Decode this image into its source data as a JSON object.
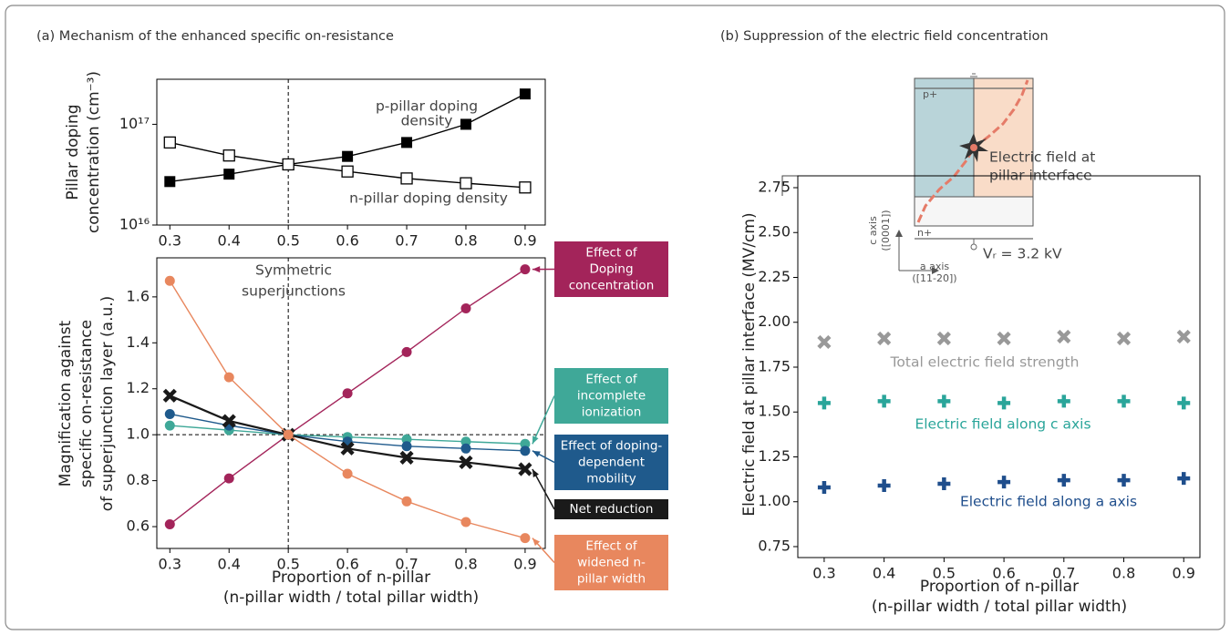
{
  "panels": [
    "(a) Mechanism of the enhanced specific on-resistance",
    "(b) Suppression of the electric field concentration"
  ],
  "chart_data": [
    {
      "type": "line",
      "yscale": "log",
      "x": [
        0.3,
        0.4,
        0.5,
        0.6,
        0.7,
        0.8,
        0.9
      ],
      "xlim": [
        0.278,
        0.934
      ],
      "xticks": [
        0.3,
        0.4,
        0.5,
        0.6,
        0.7,
        0.8,
        0.9
      ],
      "ylim": [
        1e+16,
        2.8e+17
      ],
      "yticks": [
        {
          "value": 1e+16,
          "label": "10¹⁶"
        },
        {
          "value": 1e+17,
          "label": "10¹⁷"
        }
      ],
      "ylabel": [
        "Pillar doping",
        "concentration (cm⁻³)"
      ],
      "vline": 0.5,
      "series": [
        {
          "name": [
            "p-pillar doping",
            "density"
          ],
          "color": "#000000",
          "marker": "square",
          "values": [
            2.7e+16,
            3.2e+16,
            4e+16,
            4.8e+16,
            6.6e+16,
            1e+17,
            2e+17
          ]
        },
        {
          "name": [
            "n-pillar doping density"
          ],
          "color": "#000000",
          "marker": "open-square",
          "values": [
            6.6e+16,
            4.9e+16,
            4e+16,
            3.4e+16,
            2.9e+16,
            2.6e+16,
            2.36e+16
          ]
        }
      ]
    },
    {
      "type": "line",
      "x": [
        0.3,
        0.4,
        0.5,
        0.6,
        0.7,
        0.8,
        0.9
      ],
      "xlim": [
        0.278,
        0.934
      ],
      "xticks": [
        0.3,
        0.4,
        0.5,
        0.6,
        0.7,
        0.8,
        0.9
      ],
      "ylim": [
        0.505,
        1.77
      ],
      "yticks": [
        0.6,
        0.8,
        {
          "value": 1,
          "label": "1.0"
        },
        1.2,
        1.4,
        1.6
      ],
      "xlabel": [
        "Proportion of n-pillar",
        "(n-pillar width / total pillar width)"
      ],
      "ylabel": [
        "Magnification against",
        "specific on-resistance",
        "of superjunction layer (a.u.)"
      ],
      "annotation": [
        "Symmetric",
        "superjunctions"
      ],
      "vline": 0.5,
      "hline": 1,
      "series": [
        {
          "name": [
            "Effect of",
            "Doping",
            "concentration"
          ],
          "color": "#a3245a",
          "marker": "circle",
          "values": [
            0.61,
            0.81,
            1.0,
            1.18,
            1.36,
            1.55,
            1.72
          ]
        },
        {
          "name": [
            "Effect of",
            "incomplete",
            "ionization"
          ],
          "color": "#3fa898",
          "marker": "circle",
          "values": [
            1.04,
            1.02,
            1.0,
            0.99,
            0.98,
            0.97,
            0.96
          ]
        },
        {
          "name": [
            "Effect of doping-",
            "dependent",
            "mobility"
          ],
          "color": "#1f5a8c",
          "marker": "circle",
          "values": [
            1.09,
            1.04,
            1.0,
            0.97,
            0.95,
            0.94,
            0.93
          ]
        },
        {
          "name": [
            "Net reduction"
          ],
          "color": "#1a1a1a",
          "marker": "x",
          "values": [
            1.17,
            1.06,
            1.0,
            0.94,
            0.9,
            0.88,
            0.85
          ]
        },
        {
          "name": [
            "Effect of",
            "widened n-",
            "pillar width"
          ],
          "color": "#e8875e",
          "marker": "circle",
          "values": [
            1.67,
            1.25,
            1.0,
            0.83,
            0.71,
            0.62,
            0.55
          ]
        }
      ]
    },
    {
      "type": "scatter",
      "x": [
        0.3,
        0.4,
        0.5,
        0.6,
        0.7,
        0.8,
        0.9
      ],
      "xlim": [
        0.256,
        0.927
      ],
      "xticks": [
        0.3,
        0.4,
        0.5,
        0.6,
        0.7,
        0.8,
        0.9
      ],
      "ylim": [
        0.689,
        2.816
      ],
      "yticks": [
        0.75,
        {
          "value": 1,
          "label": "1.00"
        },
        1.25,
        {
          "value": 1.5,
          "label": "1.50"
        },
        1.75,
        {
          "value": 2,
          "label": "2.00"
        },
        2.25,
        {
          "value": 2.5,
          "label": "2.50"
        },
        2.75
      ],
      "xlabel": [
        "Proportion of n-pillar",
        "(n-pillar width / total pillar width)"
      ],
      "ylabel": [
        "Electric field at pillar interface (MV/cm)"
      ],
      "series": [
        {
          "name": [
            "Total electric field strength"
          ],
          "color": "#999999",
          "marker": "x",
          "values": [
            1.89,
            1.91,
            1.91,
            1.91,
            1.92,
            1.91,
            1.92
          ]
        },
        {
          "name": [
            "Electric field along c axis"
          ],
          "color": "#2aa59a",
          "marker": "plus",
          "values": [
            1.55,
            1.56,
            1.56,
            1.55,
            1.56,
            1.56,
            1.55
          ]
        },
        {
          "name": [
            "Electric field along a axis"
          ],
          "color": "#1f4e8c",
          "marker": "plus",
          "values": [
            1.08,
            1.09,
            1.1,
            1.11,
            1.12,
            1.12,
            1.13
          ]
        }
      ],
      "inset": {
        "top": "p+",
        "bottom": "n+",
        "field": [
          "Electric field at",
          "pillar interface"
        ],
        "c_axis": [
          "c axis",
          "([0001])"
        ],
        "a_axis": [
          "a axis",
          "([11-20])"
        ],
        "voltage": "Vᵣ = 3.2 kV"
      }
    }
  ]
}
